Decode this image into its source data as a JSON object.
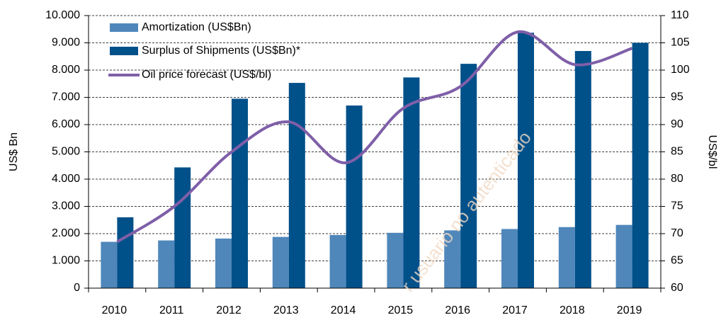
{
  "chart_data": {
    "type": "bar-line",
    "categories": [
      "2010",
      "2011",
      "2012",
      "2013",
      "2014",
      "2015",
      "2016",
      "2017",
      "2018",
      "2019"
    ],
    "series": [
      {
        "name": "Amortization (US$Bn)",
        "color": "#4f87ba",
        "values": [
          1700,
          1750,
          1820,
          1880,
          1950,
          2030,
          2120,
          2170,
          2240,
          2320
        ]
      },
      {
        "name": "Surplus of Shipments (US$Bn)*",
        "color": "#00508a",
        "values": [
          2600,
          4430,
          6950,
          7530,
          6700,
          7730,
          8230,
          9370,
          8700,
          9000
        ]
      },
      {
        "name": "Oil price forecast (US$/bl)",
        "color": "#7f5fa8",
        "axis": "y2",
        "values": [
          68.5,
          75,
          85,
          90.5,
          83,
          93,
          97,
          107,
          101,
          104
        ]
      }
    ],
    "ylabel": "US$ Bn",
    "y2label": "US$/bl",
    "ylim": [
      0,
      10000
    ],
    "yticks": [
      0,
      {
        "value": 1000,
        "label": "1.000"
      },
      {
        "value": 2000,
        "label": "2.000"
      },
      {
        "value": 3000,
        "label": "3.000"
      },
      {
        "value": 4000,
        "label": "4.000"
      },
      {
        "value": 5000,
        "label": "5.000"
      },
      {
        "value": 6000,
        "label": "6.000"
      },
      {
        "value": 7000,
        "label": "7.000"
      },
      {
        "value": 8000,
        "label": "8.000"
      },
      {
        "value": 9000,
        "label": "9.000"
      },
      {
        "value": 10000,
        "label": "10.000"
      }
    ],
    "y2lim": [
      60,
      110
    ],
    "y2ticks": [
      60,
      65,
      70,
      75,
      80,
      85,
      90,
      95,
      100,
      105,
      110
    ],
    "grid": true,
    "legend": "upper left",
    "watermark": "r usuario no autenticado"
  }
}
